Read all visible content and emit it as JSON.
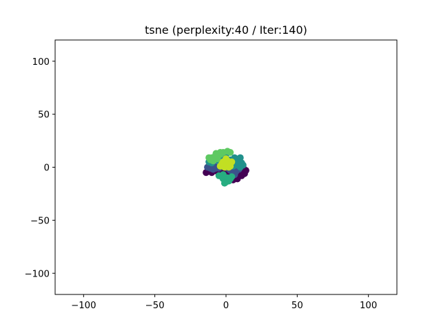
{
  "chart_data": {
    "type": "scatter",
    "title": "tsne (perplexity:40 / Iter:140)",
    "xlim": [
      -120,
      120
    ],
    "ylim": [
      -120,
      120
    ],
    "xticks": [
      -100,
      -50,
      0,
      50,
      100
    ],
    "yticks": [
      100,
      50,
      0,
      -50,
      -100
    ],
    "xtick_labels": [
      "−100",
      "−50",
      "0",
      "50",
      "100"
    ],
    "ytick_labels": [
      "100",
      "50",
      "0",
      "−50",
      "−100"
    ],
    "grid": false,
    "colormap": "viridis",
    "series": [
      {
        "color": "#440154",
        "points": [
          [
            10,
            -4
          ],
          [
            12,
            -2
          ],
          [
            13,
            -6
          ],
          [
            11,
            -8
          ],
          [
            9,
            -6
          ],
          [
            12,
            0
          ],
          [
            14,
            -3
          ],
          [
            8,
            -9
          ],
          [
            -6,
            -4
          ],
          [
            -10,
            -5
          ],
          [
            -13,
            -4
          ],
          [
            -3,
            -5
          ],
          [
            0,
            -4
          ],
          [
            3,
            -4
          ],
          [
            6,
            -5
          ],
          [
            8,
            -11
          ],
          [
            5,
            -12
          ],
          [
            -8,
            -3
          ],
          [
            -14,
            -5
          ],
          [
            2,
            -6
          ]
        ]
      },
      {
        "color": "#3b528b",
        "points": [
          [
            -13,
            0
          ],
          [
            -11,
            2
          ],
          [
            -8,
            1
          ],
          [
            -5,
            -1
          ],
          [
            -3,
            1
          ],
          [
            -9,
            -2
          ],
          [
            -7,
            -1
          ],
          [
            -11,
            -1
          ],
          [
            3,
            -3
          ],
          [
            7,
            -4
          ],
          [
            5,
            -2
          ],
          [
            9,
            -2
          ],
          [
            6,
            -7
          ],
          [
            1,
            -1
          ]
        ]
      },
      {
        "color": "#21918c",
        "points": [
          [
            8,
            7
          ],
          [
            11,
            4
          ],
          [
            10,
            9
          ],
          [
            12,
            2
          ],
          [
            6,
            9
          ],
          [
            -2,
            10
          ],
          [
            0,
            12
          ],
          [
            -10,
            4
          ],
          [
            -12,
            5
          ],
          [
            3,
            7
          ],
          [
            -5,
            6
          ],
          [
            7,
            2
          ],
          [
            5,
            1
          ],
          [
            10,
            0
          ]
        ]
      },
      {
        "color": "#27ad81",
        "points": [
          [
            -2,
            -11
          ],
          [
            0,
            -14
          ],
          [
            2,
            -13
          ],
          [
            -3,
            -9
          ],
          [
            1,
            -10
          ],
          [
            -1,
            -15
          ],
          [
            3,
            -11
          ],
          [
            -2,
            -7
          ],
          [
            -5,
            -8
          ],
          [
            4,
            -9
          ]
        ]
      },
      {
        "color": "#5ec962",
        "points": [
          [
            -4,
            12
          ],
          [
            -8,
            10
          ],
          [
            -10,
            9
          ],
          [
            -6,
            8
          ],
          [
            -2,
            14
          ],
          [
            1,
            15
          ],
          [
            3,
            14
          ],
          [
            -7,
            13
          ],
          [
            -11,
            7
          ],
          [
            -9,
            6
          ],
          [
            -12,
            9
          ],
          [
            -4,
            14
          ]
        ]
      },
      {
        "color": "#c2df23",
        "points": [
          [
            -3,
            3
          ],
          [
            -2,
            5
          ],
          [
            0,
            2
          ],
          [
            2,
            4
          ],
          [
            1,
            6
          ],
          [
            -1,
            0
          ],
          [
            3,
            1
          ],
          [
            4,
            5
          ],
          [
            -4,
            1
          ],
          [
            0,
            8
          ],
          [
            2,
            0
          ]
        ]
      }
    ]
  }
}
